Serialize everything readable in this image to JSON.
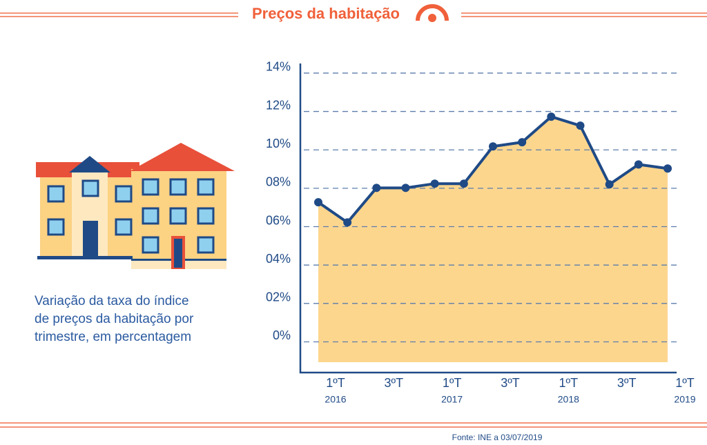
{
  "header": {
    "title": "Preços da habitação"
  },
  "description": [
    "Variação da taxa do índice",
    "de preços da habitação por",
    "trimestre, em percentagem"
  ],
  "source": "Fonte:  INE a 03/07/2019",
  "chart_data": {
    "type": "area",
    "categories": [
      "1ºT",
      null,
      "3ºT",
      null,
      "1ºT",
      null,
      "3ºT",
      null,
      "1ºT",
      null,
      "3ºT",
      null,
      "1ºT"
    ],
    "years": [
      "2016",
      null,
      null,
      null,
      "2017",
      null,
      null,
      null,
      "2018",
      null,
      null,
      null,
      "2019"
    ],
    "values": [
      7.27,
      6.22,
      8.02,
      8.02,
      8.24,
      8.24,
      10.18,
      10.4,
      11.73,
      11.26,
      8.2,
      9.24,
      9.03
    ],
    "line_color": "#1f4a86",
    "fill_color": "#fdd68e",
    "ylim": [
      -1.6,
      14.5
    ],
    "yticks": [
      {
        "value": 0,
        "label": "0%"
      },
      {
        "value": 2,
        "label": "02%"
      },
      {
        "value": 4,
        "label": "04%"
      },
      {
        "value": 6,
        "label": "06%"
      },
      {
        "value": 8,
        "label": "08%"
      },
      {
        "value": 10,
        "label": "10%"
      },
      {
        "value": 12,
        "label": "12%"
      },
      {
        "value": 14,
        "label": "14%"
      }
    ],
    "grid": true
  }
}
